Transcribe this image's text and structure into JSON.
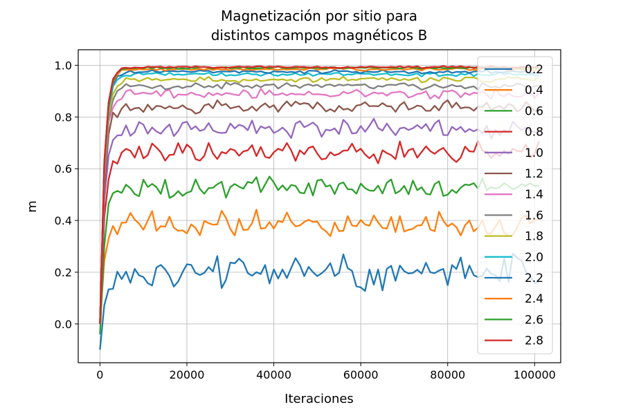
{
  "chart_data": {
    "type": "line",
    "title": "Magnetización por sitio para\ndistintos campos magnéticos B",
    "title_lines": [
      "Magnetización por sitio para",
      "distintos campos magnéticos B"
    ],
    "xlabel": "Iteraciones",
    "ylabel": "m",
    "xlim": [
      -5000,
      106000
    ],
    "ylim": [
      -0.15,
      1.06
    ],
    "x_ticks": [
      0,
      20000,
      40000,
      60000,
      80000,
      100000
    ],
    "x_tick_labels": [
      "0",
      "20000",
      "40000",
      "60000",
      "80000",
      "100000"
    ],
    "y_ticks": [
      0.0,
      0.2,
      0.4,
      0.6,
      0.8,
      1.0
    ],
    "y_tick_labels": [
      "0.0",
      "0.2",
      "0.4",
      "0.6",
      "0.8",
      "1.0"
    ],
    "grid": true,
    "legend_position": "right",
    "x_start": 0,
    "x_step": 1000,
    "x_count": 102,
    "series": [
      {
        "name": "0.2",
        "color": "#1f77b4",
        "start": -0.1,
        "plateau": 0.2,
        "amp": 0.05,
        "tau": 1.0
      },
      {
        "name": "0.4",
        "color": "#ff7f0e",
        "start": 0.0,
        "plateau": 0.385,
        "amp": 0.04,
        "tau": 1.0
      },
      {
        "name": "0.6",
        "color": "#2ca02c",
        "start": -0.04,
        "plateau": 0.53,
        "amp": 0.03,
        "tau": 1.0
      },
      {
        "name": "0.8",
        "color": "#d62728",
        "start": 0.0,
        "plateau": 0.665,
        "amp": 0.03,
        "tau": 1.0
      },
      {
        "name": "1.0",
        "color": "#9467bd",
        "start": 0.0,
        "plateau": 0.755,
        "amp": 0.025,
        "tau": 1.0
      },
      {
        "name": "1.2",
        "color": "#8c564b",
        "start": 0.0,
        "plateau": 0.84,
        "amp": 0.018,
        "tau": 1.0
      },
      {
        "name": "1.4",
        "color": "#e377c2",
        "start": 0.0,
        "plateau": 0.89,
        "amp": 0.014,
        "tau": 1.0
      },
      {
        "name": "1.6",
        "color": "#7f7f7f",
        "start": 0.0,
        "plateau": 0.92,
        "amp": 0.01,
        "tau": 1.0
      },
      {
        "name": "1.8",
        "color": "#bcbd22",
        "start": 0.0,
        "plateau": 0.945,
        "amp": 0.008,
        "tau": 1.0
      },
      {
        "name": "2.0",
        "color": "#17becf",
        "start": 0.0,
        "plateau": 0.965,
        "amp": 0.006,
        "tau": 1.0
      },
      {
        "name": "2.2",
        "color": "#1f77b4",
        "start": 0.0,
        "plateau": 0.975,
        "amp": 0.005,
        "tau": 1.0
      },
      {
        "name": "2.4",
        "color": "#ff7f0e",
        "start": 0.0,
        "plateau": 0.985,
        "amp": 0.004,
        "tau": 1.0
      },
      {
        "name": "2.6",
        "color": "#2ca02c",
        "start": 0.0,
        "plateau": 0.99,
        "amp": 0.003,
        "tau": 1.0
      },
      {
        "name": "2.8",
        "color": "#d62728",
        "start": 0.0,
        "plateau": 0.993,
        "amp": 0.003,
        "tau": 1.0
      }
    ]
  }
}
